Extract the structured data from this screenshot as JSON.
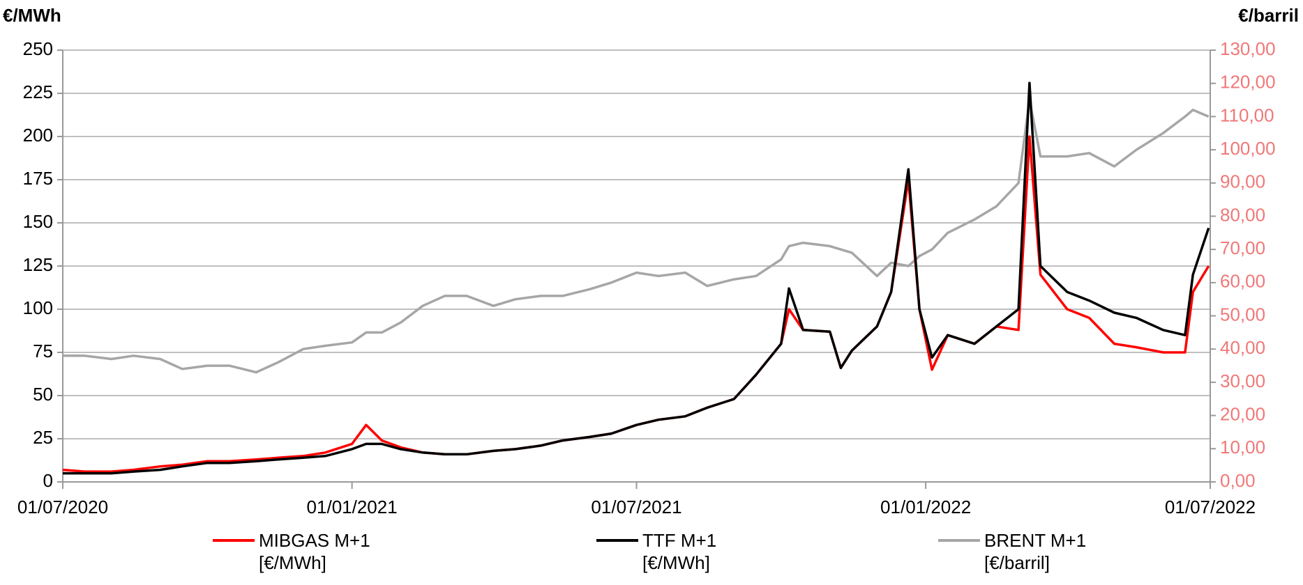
{
  "chart_data": {
    "type": "line",
    "ylabel": "€/MWh",
    "y2label": "€/barril",
    "x": [
      "2020-07-01",
      "2020-07-15",
      "2020-08-01",
      "2020-08-15",
      "2020-09-01",
      "2020-09-15",
      "2020-10-01",
      "2020-10-15",
      "2020-11-01",
      "2020-11-15",
      "2020-12-01",
      "2020-12-15",
      "2021-01-01",
      "2021-01-10",
      "2021-01-20",
      "2021-02-01",
      "2021-02-15",
      "2021-03-01",
      "2021-03-15",
      "2021-04-01",
      "2021-04-15",
      "2021-05-01",
      "2021-05-15",
      "2021-06-01",
      "2021-06-15",
      "2021-07-01",
      "2021-07-15",
      "2021-08-01",
      "2021-08-15",
      "2021-09-01",
      "2021-09-15",
      "2021-10-01",
      "2021-10-06",
      "2021-10-15",
      "2021-11-01",
      "2021-11-08",
      "2021-11-15",
      "2021-12-01",
      "2021-12-10",
      "2021-12-21",
      "2021-12-28",
      "2022-01-05",
      "2022-01-15",
      "2022-02-01",
      "2022-02-15",
      "2022-03-01",
      "2022-03-08",
      "2022-03-15",
      "2022-04-01",
      "2022-04-15",
      "2022-05-01",
      "2022-05-15",
      "2022-06-01",
      "2022-06-15",
      "2022-06-20",
      "2022-06-30"
    ],
    "series": [
      {
        "name": "MIBGAS M+1 [€/MWh]",
        "color": "#ff0000",
        "values": [
          7,
          6,
          6,
          7,
          9,
          10,
          12,
          12,
          13,
          14,
          15,
          17,
          22,
          33,
          24,
          20,
          17,
          16,
          16,
          18,
          19,
          21,
          24,
          26,
          28,
          33,
          36,
          38,
          43,
          48,
          62,
          80,
          100,
          88,
          87,
          66,
          76,
          90,
          110,
          175,
          100,
          65,
          85,
          80,
          90,
          88,
          200,
          120,
          100,
          95,
          80,
          78,
          75,
          75,
          110,
          125
        ]
      },
      {
        "name": "TTF M+1 [€/MWh]",
        "color": "#000000",
        "values": [
          5,
          5,
          5,
          6,
          7,
          9,
          11,
          11,
          12,
          13,
          14,
          15,
          19,
          22,
          22,
          19,
          17,
          16,
          16,
          18,
          19,
          21,
          24,
          26,
          28,
          33,
          36,
          38,
          43,
          48,
          62,
          80,
          112,
          88,
          87,
          66,
          76,
          90,
          110,
          181,
          100,
          72,
          85,
          80,
          90,
          100,
          231,
          125,
          110,
          105,
          98,
          95,
          88,
          85,
          120,
          147
        ]
      },
      {
        "name": "BRENT M+1 [€/barril]",
        "color": "#a6a6a6",
        "axis": "y2",
        "values": [
          38,
          38,
          37,
          38,
          37,
          34,
          35,
          35,
          33,
          36,
          40,
          41,
          42,
          45,
          45,
          48,
          53,
          56,
          56,
          53,
          55,
          56,
          56,
          58,
          60,
          63,
          62,
          63,
          59,
          61,
          62,
          67,
          71,
          72,
          71,
          70,
          69,
          62,
          66,
          65,
          68,
          70,
          75,
          79,
          83,
          90,
          115,
          98,
          98,
          99,
          95,
          100,
          105,
          110,
          112,
          110
        ]
      }
    ],
    "xlim": [
      "2020-07-01",
      "2022-07-01"
    ],
    "xticks": [
      {
        "value": "2020-07-01",
        "label": "01/07/2020"
      },
      {
        "value": "2021-01-01",
        "label": "01/01/2021"
      },
      {
        "value": "2021-07-01",
        "label": "01/07/2021"
      },
      {
        "value": "2022-01-01",
        "label": "01/01/2022"
      },
      {
        "value": "2022-07-01",
        "label": "01/07/2022"
      }
    ],
    "ylim": [
      0,
      250
    ],
    "yticks": [
      0,
      25,
      50,
      75,
      100,
      125,
      150,
      175,
      200,
      225,
      250
    ],
    "y2lim": [
      0,
      130
    ],
    "y2ticks": [
      {
        "value": 0,
        "label": "0,00"
      },
      {
        "value": 10,
        "label": "10,00"
      },
      {
        "value": 20,
        "label": "20,00"
      },
      {
        "value": 30,
        "label": "30,00"
      },
      {
        "value": 40,
        "label": "40,00"
      },
      {
        "value": 50,
        "label": "50,00"
      },
      {
        "value": 60,
        "label": "60,00"
      },
      {
        "value": 70,
        "label": "70,00"
      },
      {
        "value": 80,
        "label": "80,00"
      },
      {
        "value": 90,
        "label": "90,00"
      },
      {
        "value": 100,
        "label": "100,00"
      },
      {
        "value": 110,
        "label": "110,00"
      },
      {
        "value": 120,
        "label": "120,00"
      },
      {
        "value": 130,
        "label": "130,00"
      }
    ],
    "y2color": "#f07878",
    "grid": true
  }
}
